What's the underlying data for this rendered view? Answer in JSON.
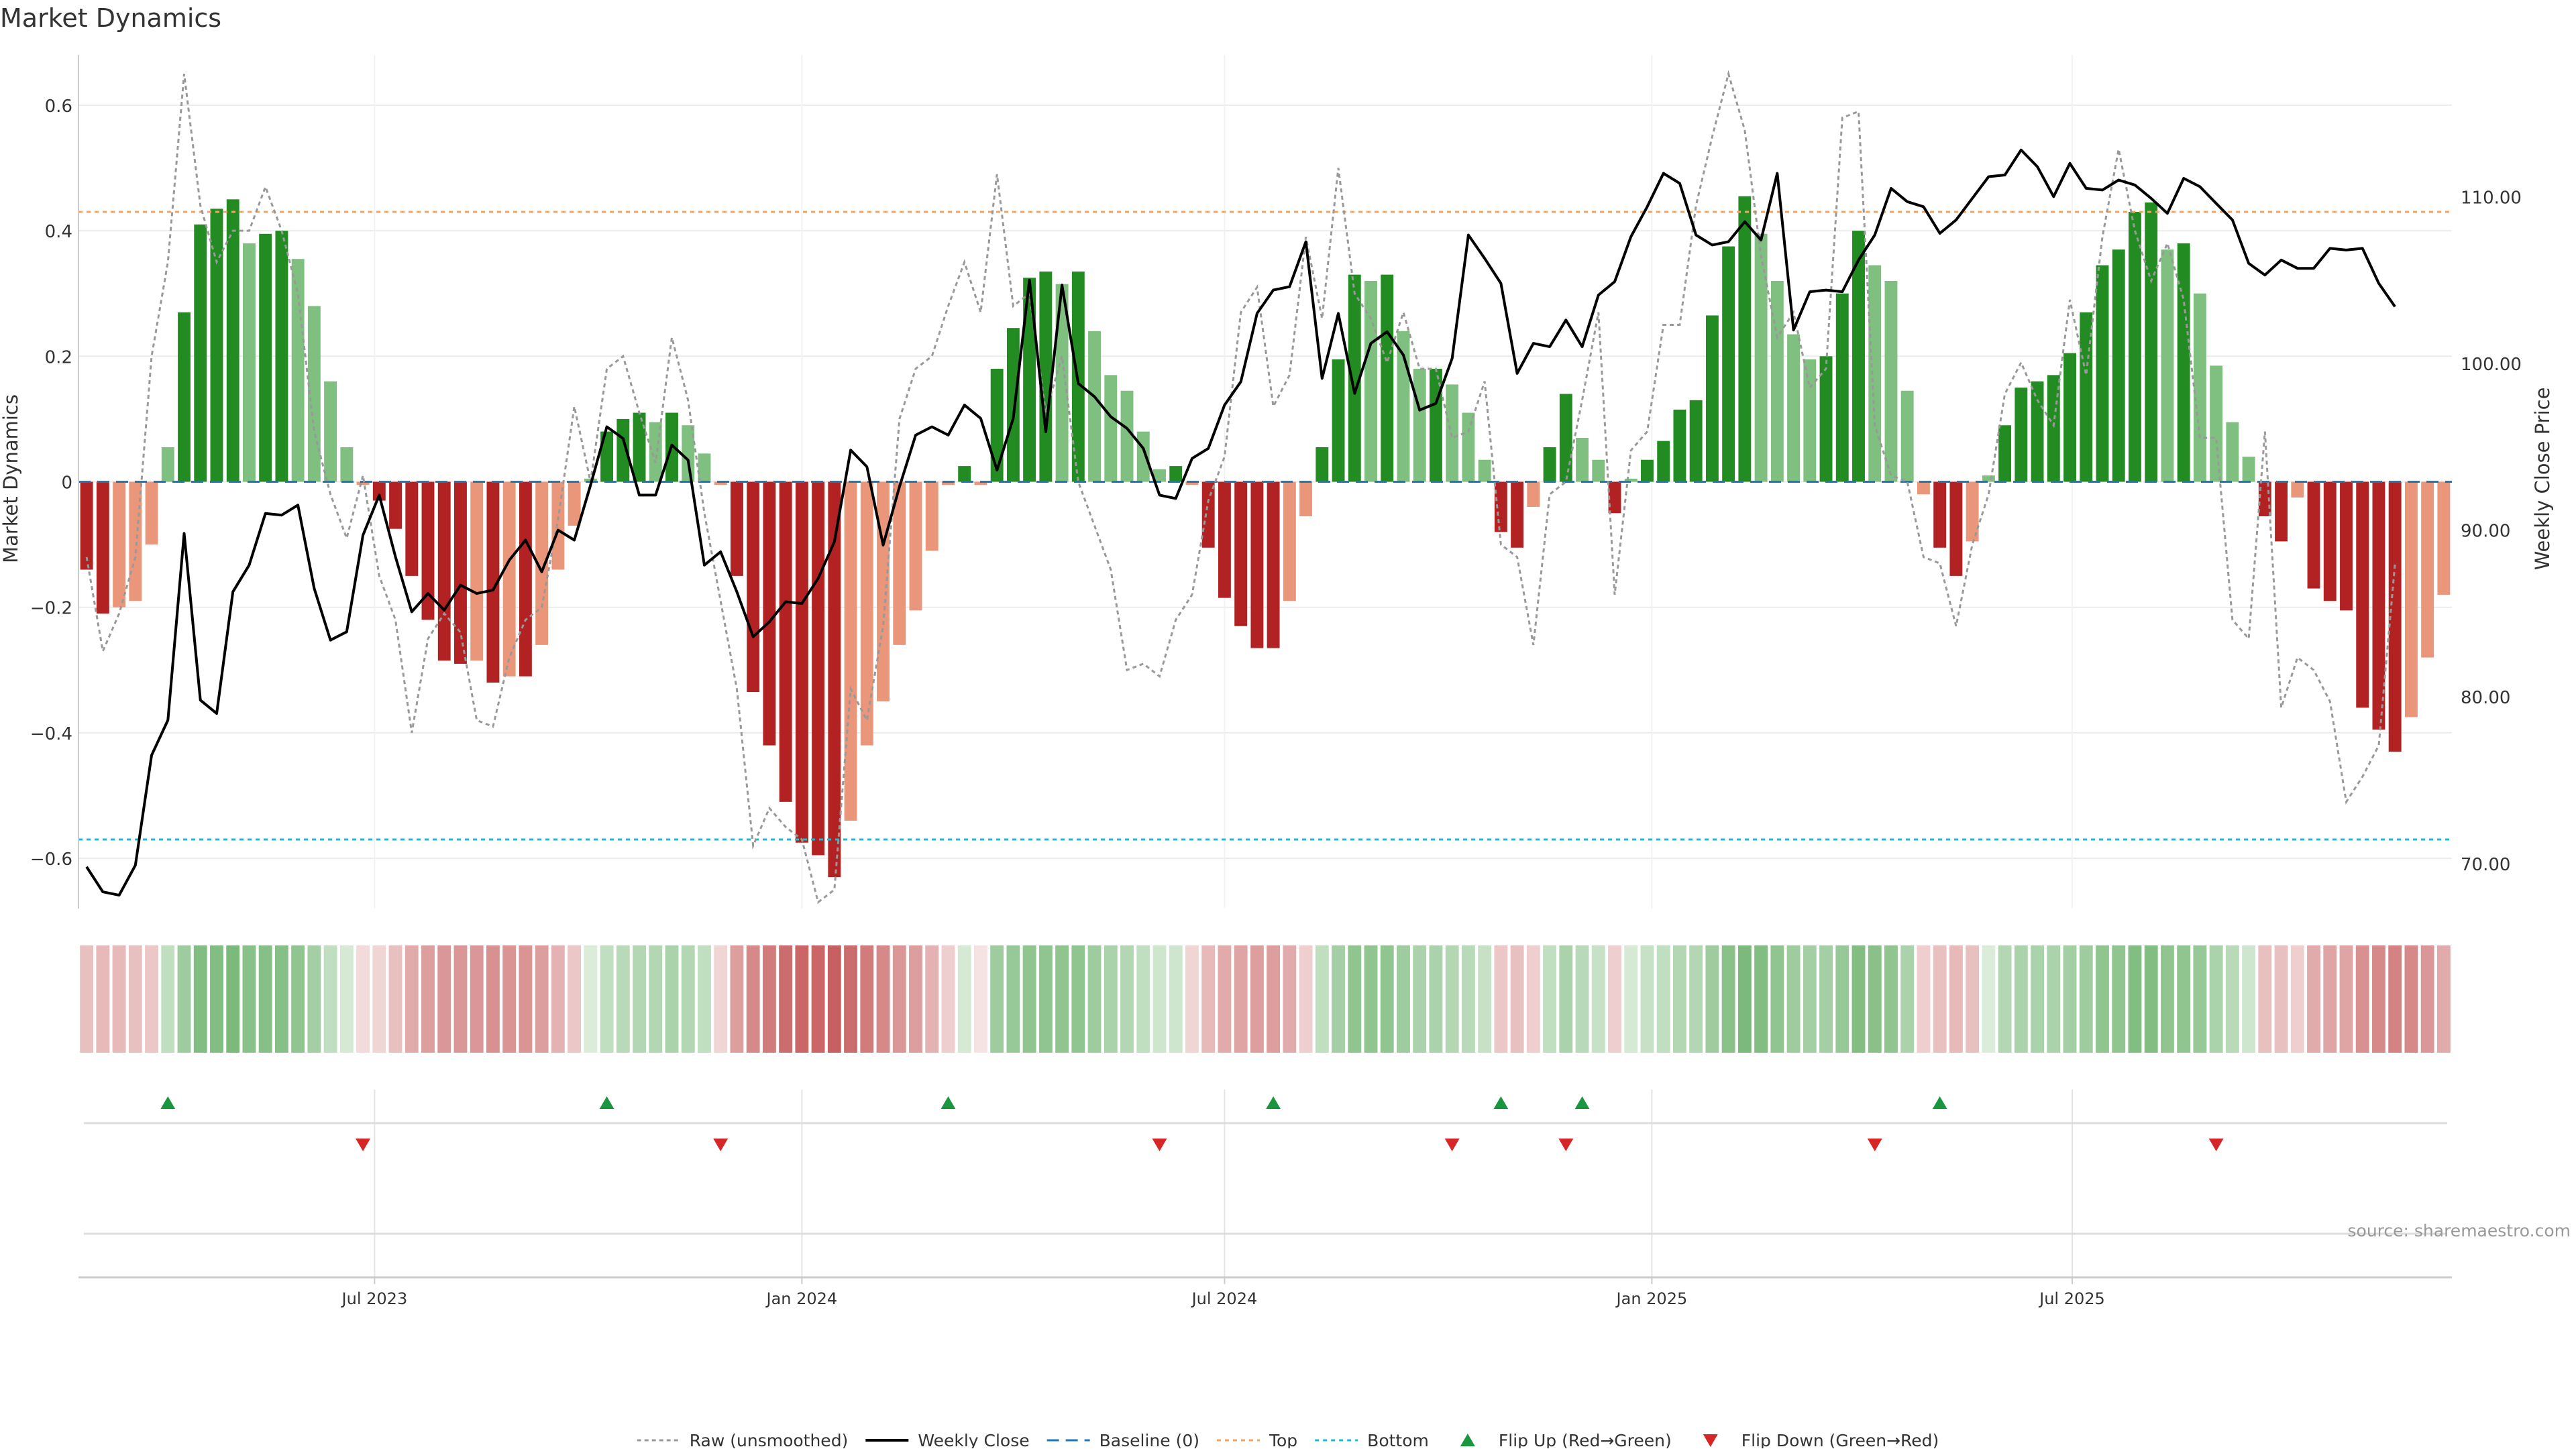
{
  "title": "Market Dynamics",
  "source": "source: sharemaestro.com",
  "colors": {
    "strong_green": "#228b22",
    "light_green": "#7fbf7f",
    "strong_red": "#b22222",
    "light_red": "#e9967a",
    "close_line": "#000000",
    "raw_line": "#999999",
    "baseline": "#1f77b4",
    "top": "#f4a460",
    "bottom": "#17becf",
    "flip_up": "#1a9641",
    "flip_down": "#d62728"
  },
  "chart_data": {
    "type": "bar+line",
    "start_date": "2023-02-27",
    "interval_days": 7,
    "x_ticks": [
      {
        "label": "Jul 2023",
        "date": "2023-07-01"
      },
      {
        "label": "Jan 2024",
        "date": "2024-01-01"
      },
      {
        "label": "Jul 2024",
        "date": "2024-07-01"
      },
      {
        "label": "Jan 2025",
        "date": "2025-01-01"
      },
      {
        "label": "Jul 2025",
        "date": "2025-07-01"
      }
    ],
    "y_left": {
      "label": "Market Dynamics",
      "lim": [
        -0.68,
        0.68
      ],
      "ticks": [
        {
          "v": -0.6,
          "label": "−0.6"
        },
        {
          "v": -0.4,
          "label": "−0.4"
        },
        {
          "v": -0.2,
          "label": "−0.2"
        },
        {
          "v": 0,
          "label": "0"
        },
        {
          "v": 0.2,
          "label": "0.2"
        },
        {
          "v": 0.4,
          "label": "0.4"
        },
        {
          "v": 0.6,
          "label": "0.6"
        }
      ]
    },
    "y_right": {
      "label": "Weekly Close Price",
      "lim": [
        67.3,
        118.5
      ],
      "ticks": [
        {
          "v": 70,
          "label": "70.00"
        },
        {
          "v": 80,
          "label": "80.00"
        },
        {
          "v": 90,
          "label": "90.00"
        },
        {
          "v": 100,
          "label": "100.00"
        },
        {
          "v": 110,
          "label": "110.00"
        }
      ]
    },
    "top": 0.43,
    "bottom": -0.57,
    "bars": [
      -0.14,
      -0.21,
      -0.2,
      -0.19,
      -0.1,
      0.055,
      0.27,
      0.41,
      0.435,
      0.45,
      0.38,
      0.395,
      0.4,
      0.355,
      0.28,
      0.16,
      0.055,
      -0.005,
      -0.03,
      -0.075,
      -0.15,
      -0.22,
      -0.285,
      -0.29,
      -0.285,
      -0.32,
      -0.31,
      -0.31,
      -0.26,
      -0.14,
      -0.07,
      0.005,
      0.08,
      0.1,
      0.11,
      0.095,
      0.11,
      0.09,
      0.045,
      -0.005,
      -0.15,
      -0.335,
      -0.42,
      -0.51,
      -0.575,
      -0.595,
      -0.63,
      -0.54,
      -0.42,
      -0.35,
      -0.26,
      -0.205,
      -0.11,
      -0.005,
      0.025,
      -0.005,
      0.18,
      0.245,
      0.325,
      0.335,
      0.315,
      0.335,
      0.24,
      0.17,
      0.145,
      0.08,
      0.02,
      0.025,
      -0.005,
      -0.105,
      -0.185,
      -0.23,
      -0.265,
      -0.265,
      -0.19,
      -0.055,
      0.055,
      0.195,
      0.33,
      0.32,
      0.33,
      0.24,
      0.18,
      0.18,
      0.155,
      0.11,
      0.035,
      -0.08,
      -0.105,
      -0.04,
      0.055,
      0.14,
      0.07,
      0.035,
      -0.05,
      0.005,
      0.035,
      0.065,
      0.115,
      0.13,
      0.265,
      0.375,
      0.455,
      0.395,
      0.32,
      0.235,
      0.195,
      0.2,
      0.3,
      0.4,
      0.345,
      0.32,
      0.145,
      -0.02,
      -0.105,
      -0.15,
      -0.095,
      0.01,
      0.09,
      0.15,
      0.16,
      0.17,
      0.205,
      0.27,
      0.345,
      0.37,
      0.43,
      0.445,
      0.37,
      0.38,
      0.3,
      0.185,
      0.095,
      0.04,
      -0.055,
      -0.095,
      -0.025,
      -0.17,
      -0.19,
      -0.205,
      -0.36,
      -0.395,
      -0.43,
      -0.375,
      -0.28,
      -0.18
    ],
    "raw": [
      -0.12,
      -0.27,
      -0.21,
      -0.12,
      0.2,
      0.35,
      0.65,
      0.44,
      0.35,
      0.4,
      0.4,
      0.47,
      0.4,
      0.3,
      0.08,
      -0.02,
      -0.09,
      0.01,
      -0.15,
      -0.22,
      -0.4,
      -0.25,
      -0.21,
      -0.24,
      -0.38,
      -0.39,
      -0.28,
      -0.22,
      -0.2,
      -0.06,
      0.12,
      0.0,
      0.18,
      0.2,
      0.11,
      0.03,
      0.23,
      0.13,
      -0.05,
      -0.19,
      -0.33,
      -0.58,
      -0.52,
      -0.55,
      -0.57,
      -0.67,
      -0.65,
      -0.33,
      -0.38,
      -0.23,
      0.1,
      0.18,
      0.2,
      0.28,
      0.35,
      0.27,
      0.49,
      0.28,
      0.3,
      0.11,
      0.2,
      0.0,
      -0.07,
      -0.14,
      -0.3,
      -0.29,
      -0.31,
      -0.22,
      -0.18,
      -0.03,
      0.04,
      0.27,
      0.31,
      0.12,
      0.17,
      0.39,
      0.26,
      0.5,
      0.3,
      0.26,
      0.19,
      0.27,
      0.18,
      0.18,
      0.07,
      0.08,
      0.16,
      -0.1,
      -0.12,
      -0.26,
      -0.02,
      0.0,
      0.13,
      0.27,
      -0.18,
      0.05,
      0.08,
      0.25,
      0.25,
      0.44,
      0.55,
      0.65,
      0.56,
      0.36,
      0.23,
      0.27,
      0.15,
      0.18,
      0.58,
      0.59,
      0.09,
      0.01,
      0.0,
      -0.12,
      -0.13,
      -0.23,
      -0.1,
      -0.02,
      0.14,
      0.19,
      0.13,
      0.09,
      0.29,
      0.17,
      0.39,
      0.53,
      0.4,
      0.32,
      0.38,
      0.29,
      0.07,
      0.07,
      -0.22,
      -0.25,
      0.08,
      -0.36,
      -0.28,
      -0.3,
      -0.35,
      -0.51,
      -0.47,
      -0.42,
      -0.13
    ],
    "close": [
      69.8,
      68.3,
      68.1,
      69.9,
      76.5,
      78.6,
      89.8,
      79.8,
      79.0,
      86.3,
      87.9,
      91.0,
      90.9,
      91.5,
      86.5,
      83.4,
      83.9,
      89.7,
      92.1,
      88.4,
      85.1,
      86.2,
      85.2,
      86.7,
      86.2,
      86.4,
      88.2,
      89.4,
      87.5,
      90.0,
      89.4,
      92.7,
      96.2,
      95.5,
      92.1,
      92.1,
      95.1,
      94.2,
      87.9,
      88.7,
      86.3,
      83.6,
      84.5,
      85.7,
      85.6,
      87.1,
      89.3,
      94.8,
      93.8,
      89.1,
      92.6,
      95.7,
      96.2,
      95.7,
      97.5,
      96.7,
      93.6,
      96.7,
      105.0,
      95.9,
      104.7,
      98.8,
      98.0,
      96.8,
      96.1,
      94.9,
      92.1,
      91.9,
      94.3,
      94.9,
      97.5,
      98.9,
      103.0,
      104.4,
      104.6,
      107.3,
      99.1,
      103.0,
      98.2,
      101.2,
      101.9,
      100.5,
      97.2,
      97.6,
      100.3,
      107.7,
      106.3,
      104.8,
      99.4,
      101.2,
      101.0,
      102.6,
      101.0,
      104.1,
      104.9,
      107.6,
      109.4,
      111.4,
      110.8,
      107.7,
      107.1,
      107.3,
      108.5,
      107.4,
      111.4,
      102.0,
      104.3,
      104.4,
      104.3,
      106.2,
      107.7,
      110.5,
      109.7,
      109.4,
      107.8,
      108.6,
      109.9,
      111.2,
      111.3,
      112.8,
      111.8,
      110.0,
      112.0,
      110.5,
      110.4,
      111.0,
      110.7,
      109.9,
      109.0,
      111.1,
      110.6,
      109.6,
      108.6,
      106.0,
      105.3,
      106.2,
      105.7,
      105.7,
      106.9,
      106.8,
      106.9,
      104.8,
      103.4
    ],
    "heat": [
      0.3,
      0.35,
      0.35,
      0.3,
      0.25,
      0.3,
      0.55,
      0.75,
      0.75,
      0.8,
      0.7,
      0.72,
      0.72,
      0.65,
      0.5,
      0.3,
      0.15,
      0.1,
      0.15,
      0.3,
      0.45,
      0.55,
      0.6,
      0.6,
      0.6,
      0.65,
      0.62,
      0.62,
      0.55,
      0.4,
      0.25,
      0.1,
      0.3,
      0.35,
      0.4,
      0.4,
      0.45,
      0.4,
      0.3,
      0.15,
      0.55,
      0.7,
      0.8,
      0.9,
      0.95,
      0.95,
      1.0,
      0.9,
      0.8,
      0.7,
      0.6,
      0.55,
      0.4,
      0.2,
      0.15,
      0.05,
      0.55,
      0.6,
      0.65,
      0.65,
      0.65,
      0.65,
      0.55,
      0.45,
      0.4,
      0.3,
      0.2,
      0.2,
      0.15,
      0.35,
      0.45,
      0.5,
      0.55,
      0.55,
      0.45,
      0.2,
      0.3,
      0.5,
      0.65,
      0.65,
      0.65,
      0.55,
      0.45,
      0.45,
      0.4,
      0.35,
      0.25,
      0.25,
      0.3,
      0.2,
      0.3,
      0.45,
      0.35,
      0.25,
      0.2,
      0.15,
      0.25,
      0.3,
      0.4,
      0.4,
      0.55,
      0.7,
      0.8,
      0.75,
      0.65,
      0.55,
      0.5,
      0.5,
      0.6,
      0.75,
      0.7,
      0.65,
      0.45,
      0.2,
      0.3,
      0.35,
      0.3,
      0.1,
      0.4,
      0.45,
      0.45,
      0.45,
      0.5,
      0.55,
      0.65,
      0.65,
      0.75,
      0.75,
      0.65,
      0.65,
      0.6,
      0.45,
      0.35,
      0.2,
      0.3,
      0.3,
      0.2,
      0.45,
      0.5,
      0.5,
      0.65,
      0.7,
      0.75,
      0.7,
      0.6,
      0.45
    ],
    "flips_up": [
      5,
      32,
      53,
      73,
      87,
      92,
      114
    ],
    "flips_down": [
      17,
      39,
      66,
      84,
      91,
      110,
      131
    ],
    "legend": [
      {
        "key": "raw",
        "label": "Raw (unsmoothed)"
      },
      {
        "key": "close",
        "label": "Weekly Close"
      },
      {
        "key": "baseline",
        "label": "Baseline (0)"
      },
      {
        "key": "top",
        "label": "Top"
      },
      {
        "key": "bottom",
        "label": "Bottom"
      },
      {
        "key": "flip_up",
        "label": "Flip Up (Red→Green)"
      },
      {
        "key": "flip_down",
        "label": "Flip Down (Green→Red)"
      }
    ],
    "grid": true,
    "legend_position": "bottom-center"
  }
}
